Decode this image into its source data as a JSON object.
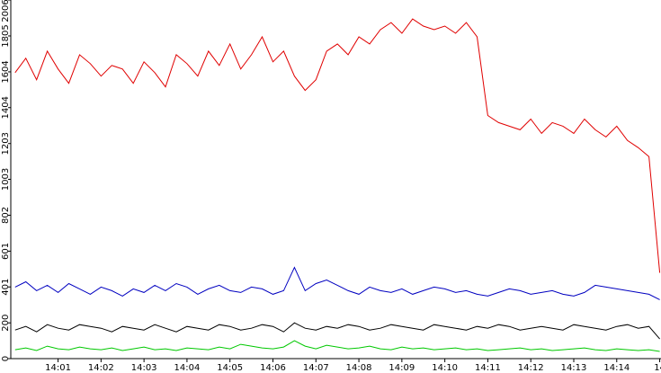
{
  "chart_data": {
    "type": "line",
    "x": [
      0,
      0.25,
      0.5,
      0.75,
      1,
      1.25,
      1.5,
      1.75,
      2,
      2.25,
      2.5,
      2.75,
      3,
      3.25,
      3.5,
      3.75,
      4,
      4.25,
      4.5,
      4.75,
      5,
      5.25,
      5.5,
      5.75,
      6,
      6.25,
      6.5,
      6.75,
      7,
      7.25,
      7.5,
      7.75,
      8,
      8.25,
      8.5,
      8.75,
      9,
      9.25,
      9.5,
      9.75,
      10,
      10.25,
      10.5,
      10.75,
      11,
      11.25,
      11.5,
      11.75,
      12,
      12.25,
      12.5,
      12.75,
      13,
      13.25,
      13.5,
      13.75,
      14,
      14.25,
      14.5,
      14.75,
      15
    ],
    "series": [
      {
        "color": "#e00000",
        "values": [
          1600,
          1680,
          1560,
          1720,
          1620,
          1540,
          1700,
          1650,
          1580,
          1640,
          1620,
          1540,
          1660,
          1600,
          1520,
          1700,
          1650,
          1580,
          1720,
          1640,
          1760,
          1620,
          1700,
          1800,
          1660,
          1720,
          1580,
          1500,
          1560,
          1720,
          1760,
          1700,
          1800,
          1760,
          1840,
          1880,
          1820,
          1900,
          1860,
          1840,
          1860,
          1820,
          1880,
          1800,
          1360,
          1320,
          1300,
          1280,
          1340,
          1260,
          1320,
          1300,
          1260,
          1340,
          1280,
          1240,
          1300,
          1220,
          1180,
          1130,
          480
        ]
      },
      {
        "color": "#0000c0",
        "values": [
          400,
          430,
          380,
          410,
          370,
          420,
          390,
          360,
          400,
          380,
          350,
          390,
          370,
          410,
          380,
          420,
          400,
          360,
          390,
          410,
          380,
          370,
          400,
          390,
          360,
          380,
          510,
          380,
          420,
          440,
          410,
          380,
          360,
          400,
          380,
          370,
          390,
          360,
          380,
          400,
          390,
          370,
          380,
          360,
          350,
          370,
          390,
          380,
          360,
          370,
          380,
          360,
          350,
          370,
          410,
          400,
          390,
          380,
          370,
          360,
          330
        ]
      },
      {
        "color": "#000000",
        "values": [
          160,
          180,
          150,
          190,
          170,
          160,
          190,
          180,
          170,
          150,
          180,
          170,
          160,
          190,
          170,
          150,
          180,
          170,
          160,
          190,
          180,
          160,
          170,
          190,
          180,
          150,
          200,
          170,
          160,
          180,
          170,
          190,
          180,
          160,
          170,
          190,
          180,
          170,
          160,
          190,
          180,
          170,
          160,
          180,
          170,
          190,
          180,
          160,
          170,
          180,
          170,
          160,
          190,
          180,
          170,
          160,
          180,
          190,
          170,
          180,
          110
        ]
      },
      {
        "color": "#00c800",
        "values": [
          50,
          60,
          45,
          70,
          55,
          50,
          65,
          55,
          50,
          60,
          45,
          55,
          65,
          50,
          55,
          45,
          60,
          55,
          50,
          65,
          55,
          80,
          70,
          60,
          55,
          65,
          100,
          70,
          55,
          75,
          65,
          55,
          60,
          70,
          55,
          50,
          65,
          55,
          60,
          50,
          55,
          60,
          50,
          55,
          45,
          50,
          55,
          60,
          50,
          55,
          45,
          50,
          55,
          60,
          50,
          45,
          55,
          50,
          45,
          50,
          40
        ]
      }
    ],
    "xlim": [
      -0.1,
      15.03
    ],
    "xticks": [
      {
        "value": 1,
        "label": "14:01"
      },
      {
        "value": 2,
        "label": "14:02"
      },
      {
        "value": 3,
        "label": "14:03"
      },
      {
        "value": 4,
        "label": "14:04"
      },
      {
        "value": 5,
        "label": "14:05"
      },
      {
        "value": 6,
        "label": "14:06"
      },
      {
        "value": 7,
        "label": "14:07"
      },
      {
        "value": 8,
        "label": "14:08"
      },
      {
        "value": 9,
        "label": "14:09"
      },
      {
        "value": 10,
        "label": "14:10"
      },
      {
        "value": 11,
        "label": "14:11"
      },
      {
        "value": 12,
        "label": "14:12"
      },
      {
        "value": 13,
        "label": "14:13"
      },
      {
        "value": 14,
        "label": "14:14"
      },
      {
        "value": 15,
        "label": "14"
      }
    ],
    "ylim": [
      0,
      2006
    ],
    "yticks": [
      0,
      200,
      401,
      601,
      802,
      1003,
      1203,
      1404,
      1604,
      1805,
      2006
    ]
  }
}
